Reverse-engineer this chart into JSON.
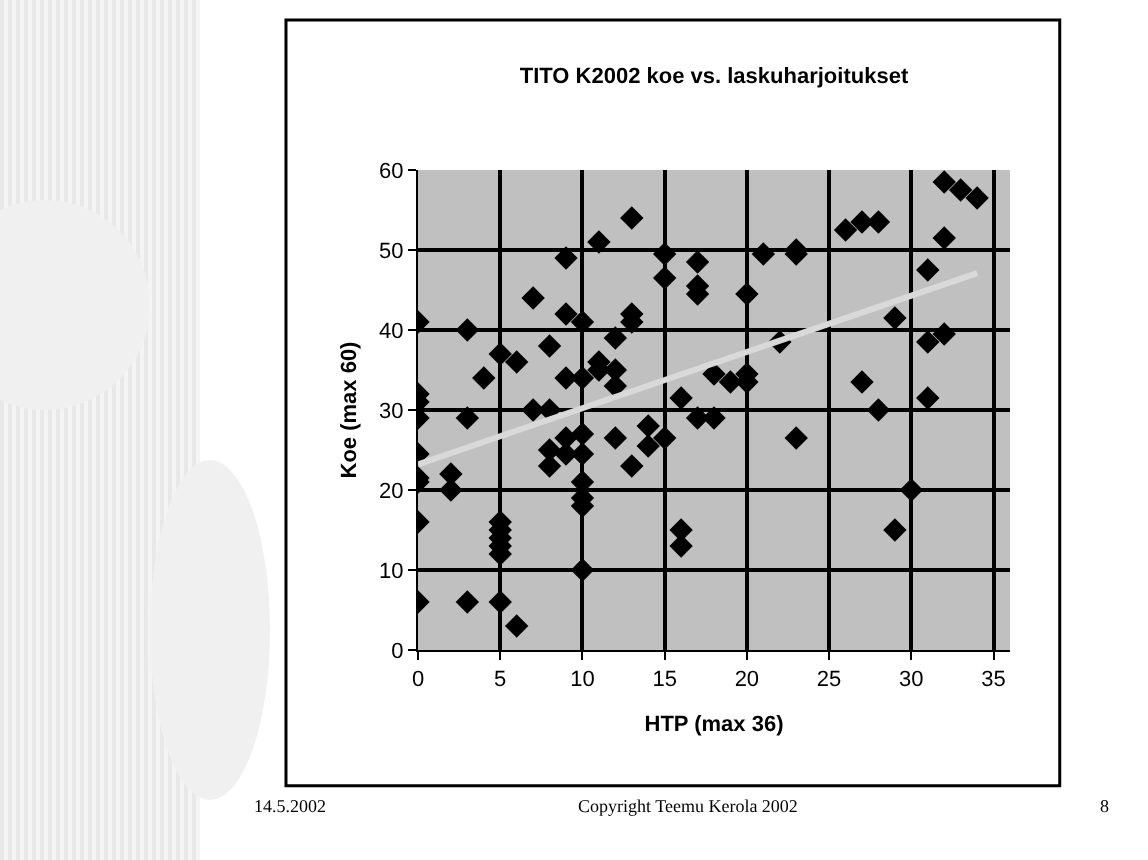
{
  "chart_data": {
    "type": "scatter",
    "title": "TITO K2002 koe vs. laskuharjoitukset",
    "xlabel": "HTP (max 36)",
    "ylabel": "Koe (max 60)",
    "xlim": [
      0,
      36
    ],
    "xticks": [
      0,
      5,
      10,
      15,
      20,
      25,
      30,
      35
    ],
    "ylim": [
      0,
      60
    ],
    "yticks": [
      0,
      10,
      20,
      30,
      40,
      50,
      60
    ],
    "grid": true,
    "legend": false,
    "marker": "diamond",
    "series": [
      {
        "type": "scatter",
        "color": "#000000",
        "x": [
          0,
          0,
          0,
          0,
          0,
          0,
          0,
          0,
          0,
          2,
          2,
          3,
          3,
          3,
          4,
          5,
          5,
          5,
          5,
          5,
          5,
          5,
          6,
          6,
          7,
          7,
          8,
          8,
          8,
          8,
          9,
          9,
          9,
          9,
          9,
          10,
          10,
          10,
          10,
          10,
          10,
          10,
          10,
          11,
          11,
          11,
          12,
          12,
          12,
          12,
          13,
          13,
          13,
          13,
          14,
          14,
          15,
          15,
          15,
          16,
          16,
          16,
          17,
          17,
          17,
          17,
          18,
          18,
          19,
          20,
          20,
          20,
          21,
          22,
          23,
          23,
          23,
          26,
          27,
          27,
          28,
          28,
          29,
          29,
          30,
          31,
          31,
          31,
          32,
          32,
          32,
          33,
          34
        ],
        "values": [
          41,
          32,
          31,
          29,
          24.5,
          21.5,
          21,
          16,
          6,
          22,
          20,
          40,
          29,
          6,
          34,
          37,
          16,
          15,
          14,
          13,
          12,
          6,
          36,
          3,
          44,
          30,
          38,
          30,
          25,
          23,
          49,
          42,
          34,
          26.5,
          24.5,
          41,
          34,
          27,
          24.5,
          21,
          19,
          18,
          10,
          51,
          36,
          35,
          39,
          35,
          33,
          26.5,
          54,
          42,
          41,
          23,
          28,
          25.5,
          49.5,
          46.5,
          26.5,
          31.5,
          15,
          13,
          48.5,
          45.5,
          44.5,
          29,
          34.5,
          29,
          33.5,
          44.5,
          34.5,
          33.5,
          49.5,
          38.5,
          50,
          49.5,
          26.5,
          52.5,
          53.5,
          33.5,
          53.5,
          30,
          41.5,
          15,
          20,
          47.5,
          38.5,
          31.5,
          58.5,
          51.5,
          39.5,
          57.5,
          56.5
        ]
      },
      {
        "type": "line",
        "color": "#d9d9d9",
        "marker": "none",
        "x": [
          0,
          34
        ],
        "values": [
          23.2,
          47.1
        ]
      }
    ],
    "annotations": [
      "14.5.2002",
      "Copyright Teemu Kerola 2002",
      "8"
    ]
  }
}
